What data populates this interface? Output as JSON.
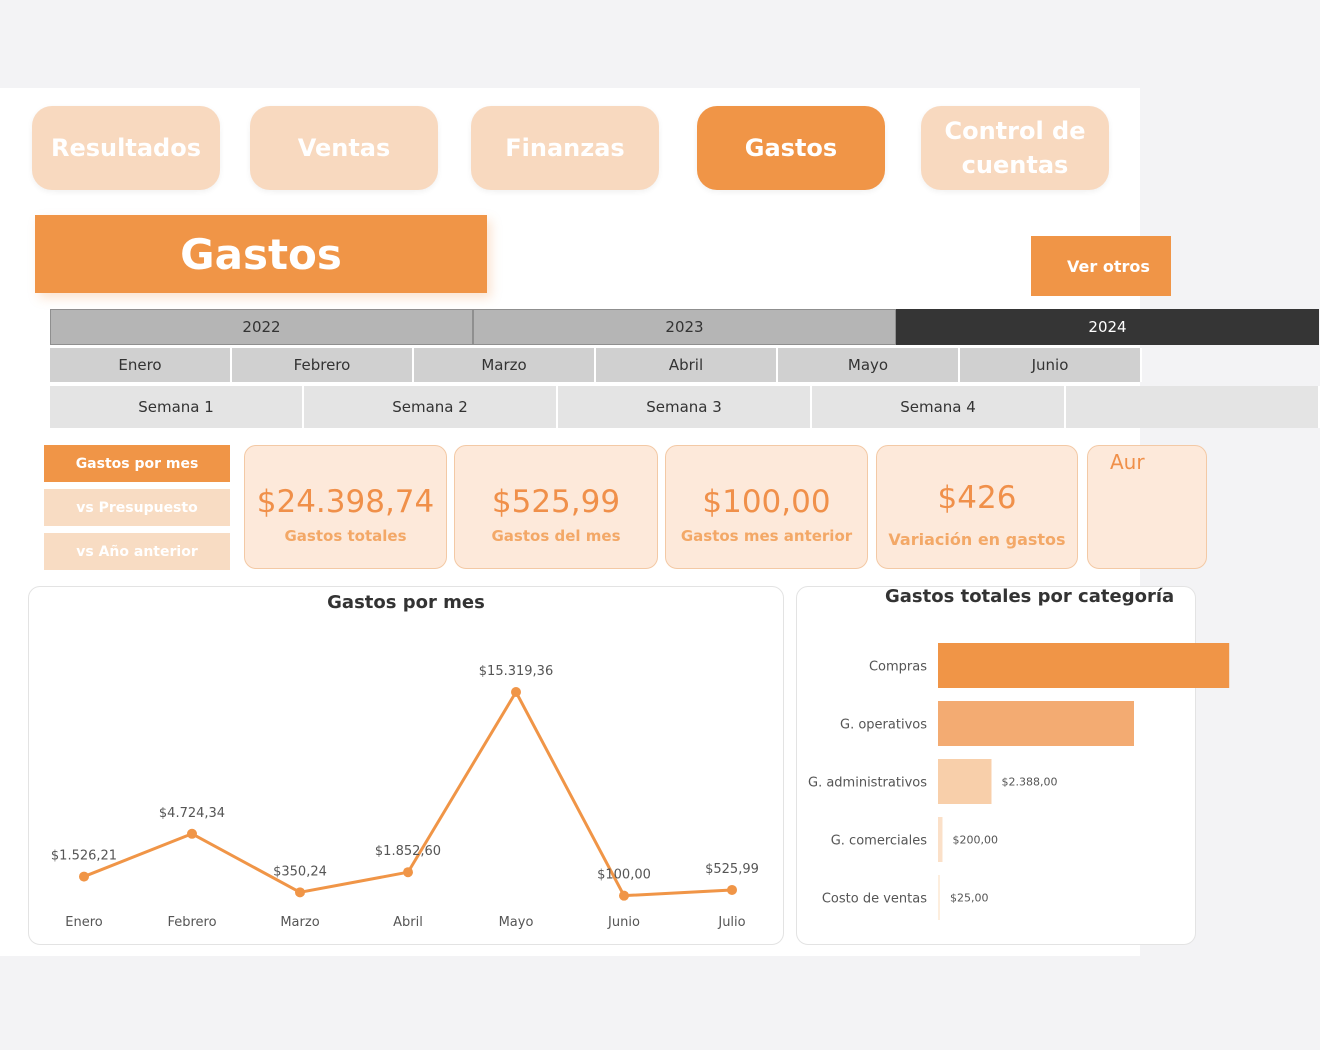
{
  "nav": [
    {
      "label": "Resultados",
      "active": false
    },
    {
      "label": "Ventas",
      "active": false
    },
    {
      "label": "Finanzas",
      "active": false
    },
    {
      "label": "Gastos",
      "active": true
    },
    {
      "label": "Control de\ncuentas",
      "active": false
    }
  ],
  "header": {
    "title": "Gastos",
    "more_label": "Ver otros"
  },
  "years": [
    "2022",
    "2023",
    "2024"
  ],
  "selected_year": "2024",
  "months": [
    "Enero",
    "Febrero",
    "Marzo",
    "Abril",
    "Mayo",
    "Junio"
  ],
  "weeks": [
    "Semana 1",
    "Semana 2",
    "Semana 3",
    "Semana 4",
    ""
  ],
  "views": [
    {
      "label": "Gastos por mes",
      "active": true
    },
    {
      "label": "vs Presupuesto",
      "active": false
    },
    {
      "label": "vs Año anterior",
      "active": false
    }
  ],
  "kpis": [
    {
      "value": "$24.398,74",
      "label": "Gastos totales"
    },
    {
      "value": "$525,99",
      "label": "Gastos del mes"
    },
    {
      "value": "$100,00",
      "label": "Gastos mes anterior"
    },
    {
      "value": "$426",
      "label": "Variación en gastos"
    },
    {
      "value": "Aur",
      "label": ""
    }
  ],
  "colors": {
    "accent": "#f09547",
    "accent_light": "#f8d9bf",
    "kpi_bg": "#fde9da",
    "selected_year": "#353535"
  },
  "chart_data": [
    {
      "type": "line",
      "title": "Gastos por mes",
      "categories": [
        "Enero",
        "Febrero",
        "Marzo",
        "Abril",
        "Mayo",
        "Junio",
        "Julio"
      ],
      "values": [
        1526.21,
        4724.34,
        350.24,
        1852.6,
        15319.36,
        100.0,
        525.99
      ],
      "data_labels": [
        "$1.526,21",
        "$4.724,34",
        "$350,24",
        "$1.852,60",
        "$15.319,36",
        "$100,00",
        "$525,99"
      ],
      "color": "#f09547",
      "grid": false
    },
    {
      "type": "bar",
      "orientation": "horizontal",
      "title": "Gastos totales por categoría",
      "categories": [
        "Compras",
        "G. operativos",
        "G. administrativos",
        "G. comerciales",
        "Costo de ventas"
      ],
      "values": [
        13000,
        8750,
        2388,
        200,
        25
      ],
      "data_labels": [
        "",
        "",
        "$2.388,00",
        "$200,00",
        "$25,00"
      ],
      "colors": [
        "#f09547",
        "#f3ab72",
        "#f8cfaa",
        "#fbe0c8",
        "#fdeede"
      ]
    }
  ]
}
